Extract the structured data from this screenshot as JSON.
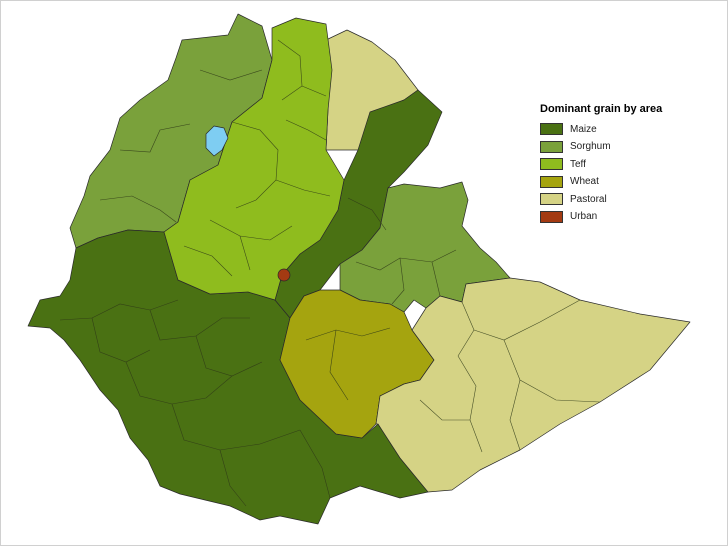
{
  "legend": {
    "title": "Dominant grain by area",
    "items": [
      {
        "key": "maize",
        "label": "Maize",
        "color": "#4a7113"
      },
      {
        "key": "sorghum",
        "label": "Sorghum",
        "color": "#7aa13b"
      },
      {
        "key": "teff",
        "label": "Teff",
        "color": "#8fbc1e"
      },
      {
        "key": "wheat",
        "label": "Wheat",
        "color": "#a5a40f"
      },
      {
        "key": "pastoral",
        "label": "Pastoral",
        "color": "#d5d385"
      },
      {
        "key": "urban",
        "label": "Urban",
        "color": "#a33a12"
      }
    ]
  },
  "water_color": "#7ecdf2"
}
